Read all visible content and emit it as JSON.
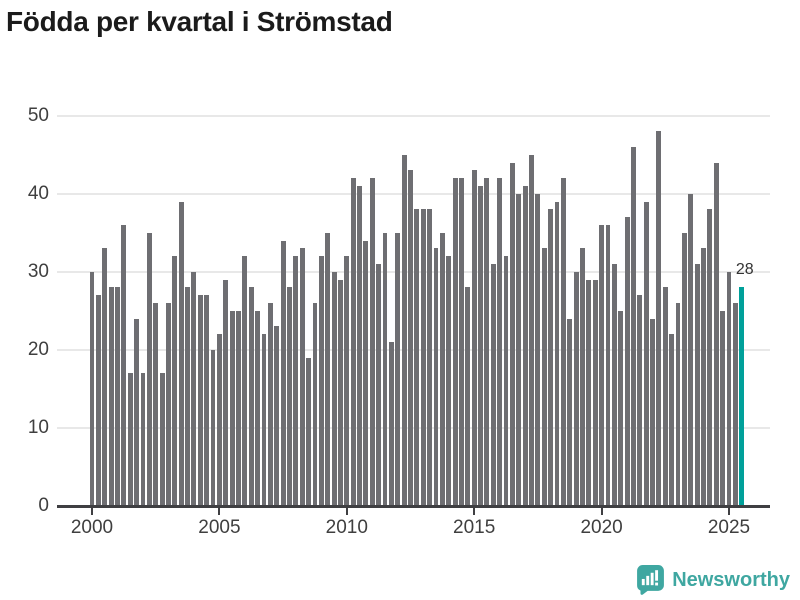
{
  "title": "Födda per kvartal i Strömstad",
  "chart_data": {
    "type": "bar",
    "title": "Födda per kvartal i Strömstad",
    "x_period": "quarterly",
    "x_range": "2000-Q1 to 2025-Q3",
    "years": [
      {
        "year": 2000,
        "quarters": [
          30,
          27,
          33,
          28
        ]
      },
      {
        "year": 2001,
        "quarters": [
          28,
          36,
          17,
          24
        ]
      },
      {
        "year": 2002,
        "quarters": [
          17,
          35,
          26,
          17
        ]
      },
      {
        "year": 2003,
        "quarters": [
          26,
          32,
          39,
          28
        ]
      },
      {
        "year": 2004,
        "quarters": [
          30,
          27,
          27,
          20
        ]
      },
      {
        "year": 2005,
        "quarters": [
          22,
          29,
          25,
          25
        ]
      },
      {
        "year": 2006,
        "quarters": [
          32,
          28,
          25,
          22
        ]
      },
      {
        "year": 2007,
        "quarters": [
          26,
          23,
          34,
          28
        ]
      },
      {
        "year": 2008,
        "quarters": [
          32,
          33,
          19,
          26
        ]
      },
      {
        "year": 2009,
        "quarters": [
          32,
          35,
          30,
          29
        ]
      },
      {
        "year": 2010,
        "quarters": [
          32,
          42,
          41,
          34
        ]
      },
      {
        "year": 2011,
        "quarters": [
          42,
          31,
          35,
          21
        ]
      },
      {
        "year": 2012,
        "quarters": [
          35,
          45,
          43,
          38
        ]
      },
      {
        "year": 2013,
        "quarters": [
          38,
          38,
          33,
          35
        ]
      },
      {
        "year": 2014,
        "quarters": [
          32,
          42,
          42,
          28
        ]
      },
      {
        "year": 2015,
        "quarters": [
          43,
          41,
          42,
          31
        ]
      },
      {
        "year": 2016,
        "quarters": [
          42,
          32,
          44,
          40
        ]
      },
      {
        "year": 2017,
        "quarters": [
          41,
          45,
          40,
          33
        ]
      },
      {
        "year": 2018,
        "quarters": [
          38,
          39,
          42,
          24
        ]
      },
      {
        "year": 2019,
        "quarters": [
          30,
          33,
          29,
          29
        ]
      },
      {
        "year": 2020,
        "quarters": [
          36,
          36,
          31,
          25
        ]
      },
      {
        "year": 2021,
        "quarters": [
          37,
          46,
          27,
          39
        ]
      },
      {
        "year": 2022,
        "quarters": [
          24,
          48,
          28,
          22
        ]
      },
      {
        "year": 2023,
        "quarters": [
          26,
          35,
          40,
          31
        ]
      },
      {
        "year": 2024,
        "quarters": [
          33,
          38,
          44,
          25
        ]
      },
      {
        "year": 2025,
        "quarters": [
          30,
          26,
          28
        ]
      }
    ],
    "x_tick_labels": [
      "2000",
      "2005",
      "2010",
      "2015",
      "2020",
      "2025"
    ],
    "y_ticks": [
      0,
      10,
      20,
      30,
      40,
      50
    ],
    "ylim": [
      0,
      52
    ],
    "grid": true,
    "legend": false,
    "highlight_last_bar": true,
    "last_bar_label": "28",
    "bar_color": "#6e6e72",
    "highlight_color": "#00a09a"
  },
  "colors": {
    "grid": "#e8e8e8",
    "axis": "#3f3f42",
    "tick_text": "#3f3f3f",
    "title_text": "#1b1b1b",
    "brand_teal": "#3fa7a1"
  },
  "footer": {
    "brand": "Newsworthy"
  }
}
